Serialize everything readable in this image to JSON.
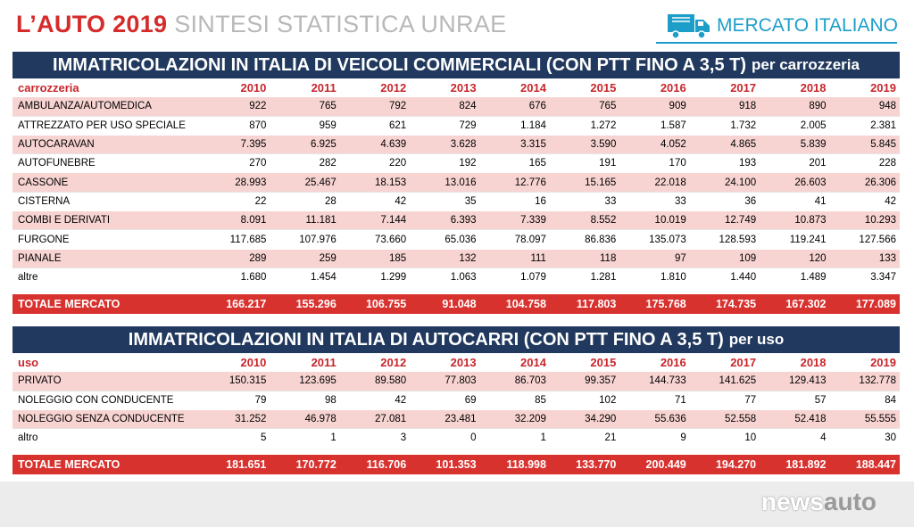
{
  "header": {
    "title_red": "L’AUTO 2019",
    "title_grey": "SINTESI STATISTICA UNRAE",
    "brand": "MERCATO ITALIANO",
    "brand_icon": "truck-icon",
    "brand_color": "#1d9ec9"
  },
  "colors": {
    "navy": "#21395e",
    "red": "#d8322f",
    "pink": "#f7d4d2"
  },
  "table1": {
    "title": "IMMATRICOLAZIONI IN ITALIA DI VEICOLI COMMERCIALI (CON PTT FINO A 3,5 T)",
    "title_suffix": "per carrozzeria",
    "headers": [
      "carrozzeria",
      "2010",
      "2011",
      "2012",
      "2013",
      "2014",
      "2015",
      "2016",
      "2017",
      "2018",
      "2019"
    ],
    "rows": [
      [
        "AMBULANZA/AUTOMEDICA",
        "922",
        "765",
        "792",
        "824",
        "676",
        "765",
        "909",
        "918",
        "890",
        "948"
      ],
      [
        "ATTREZZATO PER USO SPECIALE",
        "870",
        "959",
        "621",
        "729",
        "1.184",
        "1.272",
        "1.587",
        "1.732",
        "2.005",
        "2.381"
      ],
      [
        "AUTOCARAVAN",
        "7.395",
        "6.925",
        "4.639",
        "3.628",
        "3.315",
        "3.590",
        "4.052",
        "4.865",
        "5.839",
        "5.845"
      ],
      [
        "AUTOFUNEBRE",
        "270",
        "282",
        "220",
        "192",
        "165",
        "191",
        "170",
        "193",
        "201",
        "228"
      ],
      [
        "CASSONE",
        "28.993",
        "25.467",
        "18.153",
        "13.016",
        "12.776",
        "15.165",
        "22.018",
        "24.100",
        "26.603",
        "26.306"
      ],
      [
        "CISTERNA",
        "22",
        "28",
        "42",
        "35",
        "16",
        "33",
        "33",
        "36",
        "41",
        "42"
      ],
      [
        "COMBI E DERIVATI",
        "8.091",
        "11.181",
        "7.144",
        "6.393",
        "7.339",
        "8.552",
        "10.019",
        "12.749",
        "10.873",
        "10.293"
      ],
      [
        "FURGONE",
        "117.685",
        "107.976",
        "73.660",
        "65.036",
        "78.097",
        "86.836",
        "135.073",
        "128.593",
        "119.241",
        "127.566"
      ],
      [
        "PIANALE",
        "289",
        "259",
        "185",
        "132",
        "111",
        "118",
        "97",
        "109",
        "120",
        "133"
      ],
      [
        "altre",
        "1.680",
        "1.454",
        "1.299",
        "1.063",
        "1.079",
        "1.281",
        "1.810",
        "1.440",
        "1.489",
        "3.347"
      ]
    ],
    "total": [
      "TOTALE MERCATO",
      "166.217",
      "155.296",
      "106.755",
      "91.048",
      "104.758",
      "117.803",
      "175.768",
      "174.735",
      "167.302",
      "177.089"
    ]
  },
  "table2": {
    "title": "IMMATRICOLAZIONI IN ITALIA DI AUTOCARRI (CON PTT FINO A 3,5 T)",
    "title_suffix": "per uso",
    "headers": [
      "uso",
      "2010",
      "2011",
      "2012",
      "2013",
      "2014",
      "2015",
      "2016",
      "2017",
      "2018",
      "2019"
    ],
    "rows": [
      [
        "PRIVATO",
        "150.315",
        "123.695",
        "89.580",
        "77.803",
        "86.703",
        "99.357",
        "144.733",
        "141.625",
        "129.413",
        "132.778"
      ],
      [
        "NOLEGGIO CON CONDUCENTE",
        "79",
        "98",
        "42",
        "69",
        "85",
        "102",
        "71",
        "77",
        "57",
        "84"
      ],
      [
        "NOLEGGIO SENZA CONDUCENTE",
        "31.252",
        "46.978",
        "27.081",
        "23.481",
        "32.209",
        "34.290",
        "55.636",
        "52.558",
        "52.418",
        "55.555"
      ],
      [
        "altro",
        "5",
        "1",
        "3",
        "0",
        "1",
        "21",
        "9",
        "10",
        "4",
        "30"
      ]
    ],
    "total": [
      "TOTALE MERCATO",
      "181.651",
      "170.772",
      "116.706",
      "101.353",
      "118.998",
      "133.770",
      "200.449",
      "194.270",
      "181.892",
      "188.447"
    ]
  },
  "watermark": {
    "part1": "news",
    "part2": "auto"
  }
}
